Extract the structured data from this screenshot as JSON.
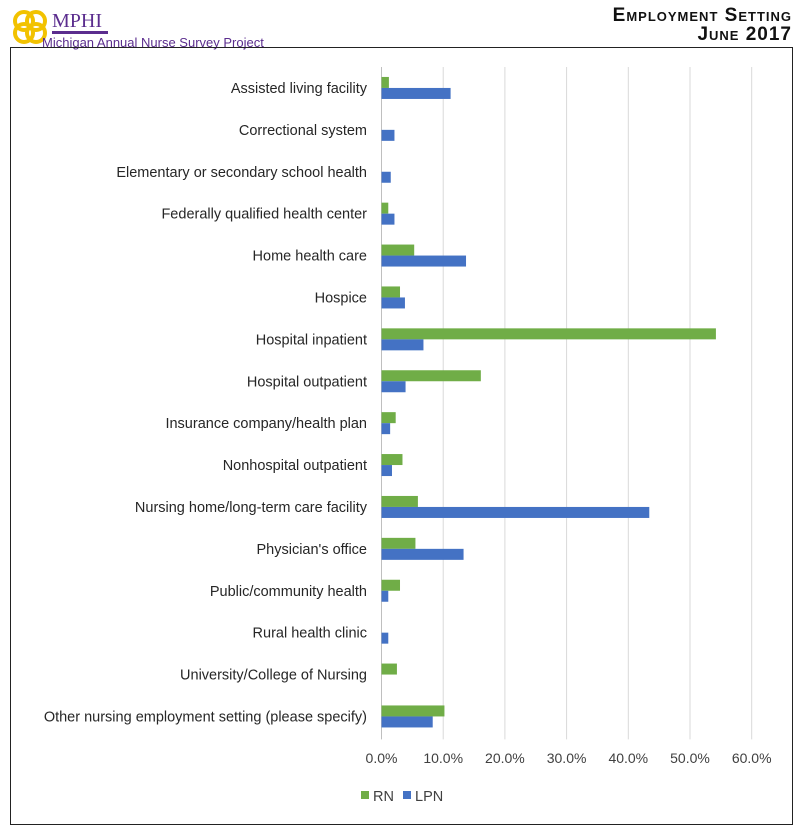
{
  "header": {
    "org": "MPHI",
    "subtitle": "Michigan Annual Nurse Survey Project",
    "title_line1": "Employment Setting",
    "title_line2": "June 2017"
  },
  "chart_data": {
    "type": "bar",
    "orientation": "horizontal",
    "categories": [
      "Assisted living facility",
      "Correctional system",
      "Elementary or secondary school health",
      "Federally qualified health center",
      "Home health care",
      "Hospice",
      "Hospital inpatient",
      "Hospital outpatient",
      "Insurance company/health plan",
      "Nonhospital outpatient",
      "Nursing home/long-term care facility",
      "Physician's office",
      "Public/community health",
      "Rural health clinic",
      "University/College of Nursing",
      "Other nursing employment setting (please specify)"
    ],
    "series": [
      {
        "name": "RN",
        "color": "#70ad47",
        "values": [
          1.2,
          0,
          0,
          1.1,
          5.3,
          3.0,
          54.2,
          16.1,
          2.3,
          3.4,
          5.9,
          5.5,
          3.0,
          0,
          2.5,
          10.2
        ]
      },
      {
        "name": "LPN",
        "color": "#4472c4",
        "values": [
          11.2,
          2.1,
          1.5,
          2.1,
          13.7,
          3.8,
          6.8,
          3.9,
          1.4,
          1.7,
          43.4,
          13.3,
          1.1,
          1.1,
          0,
          8.3
        ]
      }
    ],
    "xlim": [
      0,
      60
    ],
    "ticks": [
      "0.0%",
      "10.0%",
      "20.0%",
      "30.0%",
      "40.0%",
      "50.0%",
      "60.0%"
    ],
    "grid": true,
    "legend": "bottom-left"
  }
}
